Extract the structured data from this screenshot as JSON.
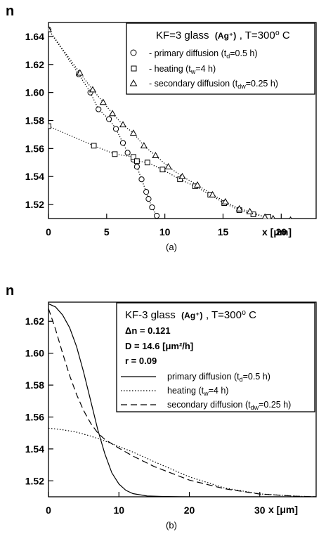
{
  "chart_data": [
    {
      "type": "scatter",
      "panel_label": "(a)",
      "ylabel": "n",
      "xlabel": "x [μm]",
      "xlim": [
        0,
        23
      ],
      "ylim": [
        1.51,
        1.65
      ],
      "xticks": [
        0,
        5,
        10,
        15,
        20
      ],
      "yticks": [
        1.52,
        1.54,
        1.56,
        1.58,
        1.6,
        1.62,
        1.64
      ],
      "x_tick_labels": [
        "0",
        "5",
        "10",
        "15",
        "20"
      ],
      "y_tick_labels": [
        "1.52",
        "1.54",
        "1.56",
        "1.58",
        "1.60",
        "1.62",
        "1.64"
      ],
      "grid": false,
      "legend": {
        "position": "top-right",
        "title_main": "KF=3 glass",
        "title_ion": "(Ag⁺)",
        "title_temp": ", T=300⁰ C"
      },
      "series": [
        {
          "name": "- primary diffusion (tₐ=0.5 h)",
          "label_parts": [
            "- primary diffusion (t",
            "d",
            "=0.5 h)"
          ],
          "marker": "circle",
          "x": [
            0,
            2.6,
            3.6,
            4.3,
            5.2,
            5.8,
            6.4,
            6.8,
            7.3,
            7.6,
            8.0,
            8.4,
            8.6,
            8.9,
            9.3
          ],
          "y": [
            1.645,
            1.613,
            1.6,
            1.588,
            1.581,
            1.574,
            1.564,
            1.557,
            1.552,
            1.547,
            1.538,
            1.529,
            1.524,
            1.518,
            1.512
          ]
        },
        {
          "name": "- heating (t_w=4 h)",
          "label_parts": [
            "- heating (t",
            "w",
            "=4 h)"
          ],
          "marker": "square",
          "x": [
            0,
            3.9,
            5.7,
            7.3,
            7.6,
            8.5,
            9.8,
            11.3,
            12.6,
            13.9,
            15.1,
            16.4,
            17.6,
            18.9
          ],
          "y": [
            1.576,
            1.562,
            1.556,
            1.554,
            1.551,
            1.55,
            1.545,
            1.538,
            1.533,
            1.527,
            1.521,
            1.516,
            1.513,
            1.511
          ]
        },
        {
          "name": "- secondary diffusion (t_dw=0.25 h)",
          "label_parts": [
            "- secondary diffusion (t",
            "dw",
            "=0.25 h)"
          ],
          "marker": "triangle",
          "x": [
            0,
            2.7,
            3.8,
            4.7,
            5.5,
            6.4,
            7.3,
            8.2,
            9.2,
            10.3,
            11.5,
            12.8,
            14.1,
            15.2,
            16.4,
            17.3,
            18.6,
            19.3,
            20.8
          ],
          "y": [
            1.645,
            1.614,
            1.602,
            1.593,
            1.585,
            1.577,
            1.571,
            1.562,
            1.555,
            1.547,
            1.54,
            1.534,
            1.527,
            1.522,
            1.517,
            1.515,
            1.511,
            1.51,
            1.509
          ]
        }
      ]
    },
    {
      "type": "line",
      "panel_label": "(b)",
      "ylabel": "n",
      "xlabel": "x [μm]",
      "xlim": [
        0,
        38
      ],
      "ylim": [
        1.51,
        1.632
      ],
      "xticks": [
        0,
        10,
        20,
        30
      ],
      "yticks": [
        1.52,
        1.54,
        1.56,
        1.58,
        1.6,
        1.62
      ],
      "x_tick_labels": [
        "0",
        "10",
        "20",
        "30"
      ],
      "y_tick_labels": [
        "1.52",
        "1.54",
        "1.56",
        "1.58",
        "1.60",
        "1.62"
      ],
      "grid": false,
      "legend": {
        "position": "top-right",
        "title_main": "KF-3 glass",
        "title_ion": "(Ag⁺)",
        "title_temp": ", T=300⁰ C",
        "params": [
          "Δn = 0.121",
          "D = 14.6 [μm²/h]",
          "r = 0.09"
        ]
      },
      "series": [
        {
          "name": "primary diffusion (t_d=0.5 h)",
          "label_parts": [
            "primary diffusion (t",
            "d",
            "=0.5 h)"
          ],
          "style": "solid",
          "x": [
            0,
            1,
            2,
            3,
            4,
            5,
            6,
            7,
            8,
            9,
            10,
            11,
            12,
            14,
            16,
            20,
            30,
            38
          ],
          "y": [
            1.631,
            1.629,
            1.624,
            1.616,
            1.604,
            1.588,
            1.57,
            1.552,
            1.537,
            1.525,
            1.518,
            1.514,
            1.512,
            1.5105,
            1.5102,
            1.51,
            1.51,
            1.51
          ]
        },
        {
          "name": "heating (t_w=4 h)",
          "label_parts": [
            "heating (t",
            "w",
            "=4 h)"
          ],
          "style": "dotted",
          "x": [
            0,
            2,
            4,
            6,
            8,
            10,
            12,
            15,
            20,
            25,
            30,
            35,
            38
          ],
          "y": [
            1.553,
            1.552,
            1.5505,
            1.548,
            1.545,
            1.5415,
            1.538,
            1.532,
            1.5225,
            1.5155,
            1.5118,
            1.5104,
            1.51
          ]
        },
        {
          "name": "secondary diffusion (t_dw=0.25 h)",
          "label_parts": [
            "secondary diffusion (t",
            "dw",
            "=0.25 h)"
          ],
          "style": "dashed",
          "x": [
            0,
            1,
            2,
            3,
            4,
            5,
            6,
            7,
            8,
            10,
            12,
            15,
            20,
            25,
            30,
            35,
            38
          ],
          "y": [
            1.628,
            1.615,
            1.6,
            1.586,
            1.574,
            1.564,
            1.556,
            1.55,
            1.546,
            1.5405,
            1.5355,
            1.529,
            1.5205,
            1.515,
            1.5117,
            1.5104,
            1.51
          ]
        }
      ]
    }
  ]
}
